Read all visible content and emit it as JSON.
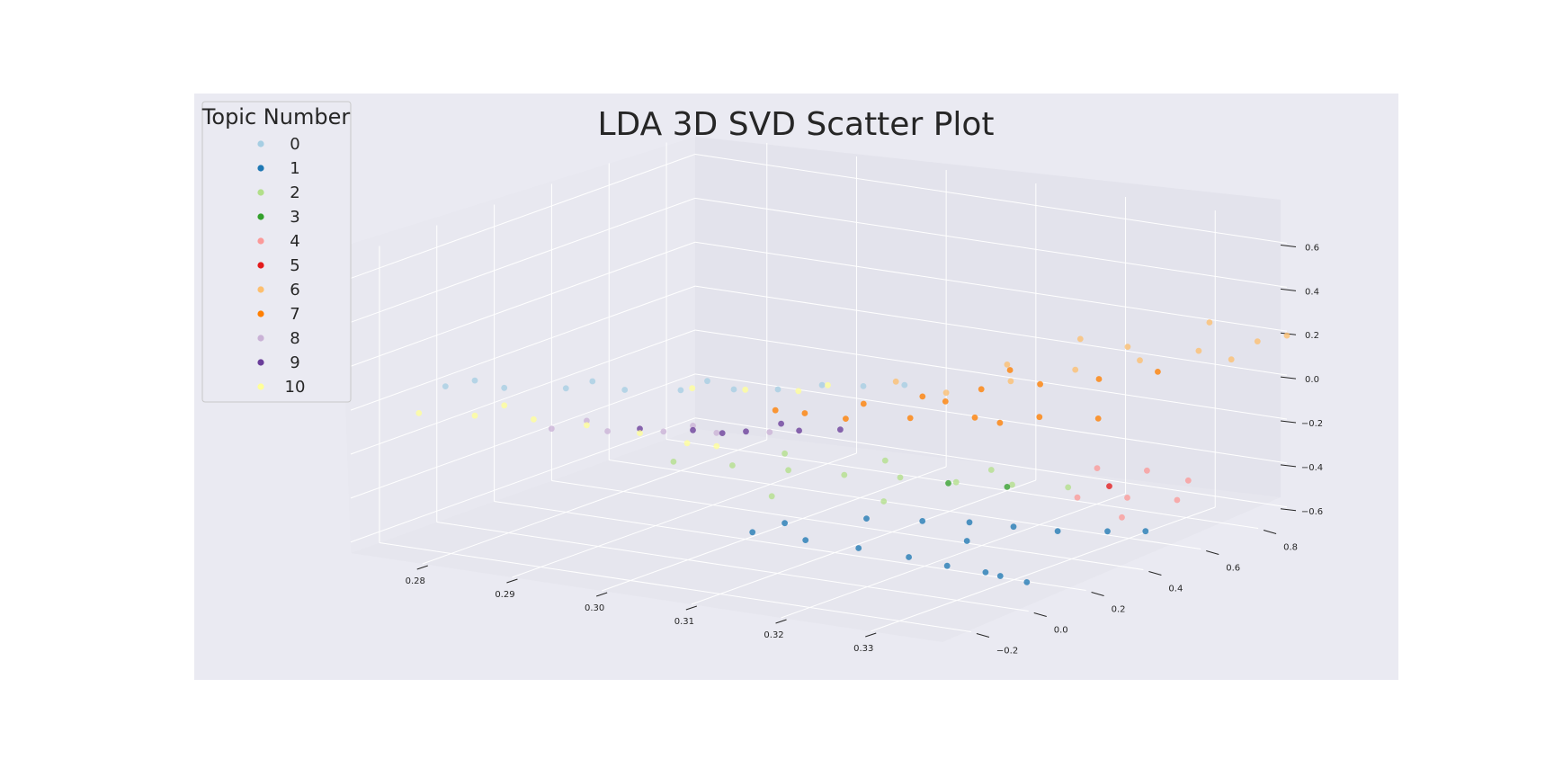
{
  "chart_data": {
    "type": "scatter",
    "projection": "3d",
    "title": "LDA 3D SVD Scatter Plot",
    "xlabel": "",
    "ylabel": "",
    "zlabel": "",
    "x_ticks": [
      0.28,
      0.29,
      0.3,
      0.31,
      0.32,
      0.33
    ],
    "x_tick_labels": [
      "0.28",
      "0.29",
      "0.30",
      "0.31",
      "0.32",
      "0.33"
    ],
    "y_ticks": [
      -0.2,
      0.0,
      0.2,
      0.4,
      0.6,
      0.8
    ],
    "y_tick_labels": [
      "−0.2",
      "0.0",
      "0.2",
      "0.4",
      "0.6",
      "0.8"
    ],
    "z_ticks": [
      -0.6,
      -0.4,
      -0.2,
      0.0,
      0.2,
      0.4,
      0.6
    ],
    "z_tick_labels": [
      "−0.6",
      "−0.4",
      "−0.2",
      "0.0",
      "0.2",
      "0.4",
      "0.6"
    ],
    "xlim": [
      0.272,
      0.338
    ],
    "ylim": [
      -0.3,
      0.9
    ],
    "zlim": [
      -0.65,
      0.7
    ],
    "grid": true,
    "legend": {
      "title": "Topic Number",
      "position": "top-left"
    },
    "series": [
      {
        "name": "0",
        "color": "#a6cee3",
        "points": [
          [
            0.28,
            -0.22,
            0.12
          ],
          [
            0.284,
            -0.14,
            0.1
          ],
          [
            0.288,
            -0.05,
            0.08
          ],
          [
            0.292,
            0.03,
            0.06
          ],
          [
            0.296,
            0.1,
            0.05
          ],
          [
            0.3,
            0.16,
            0.05
          ],
          [
            0.303,
            0.22,
            0.04
          ],
          [
            0.306,
            0.28,
            0.05
          ],
          [
            0.309,
            0.33,
            0.04
          ],
          [
            0.312,
            0.38,
            0.04
          ],
          [
            0.282,
            -0.18,
            0.14
          ],
          [
            0.29,
            -0.02,
            0.11
          ],
          [
            0.298,
            0.13,
            0.09
          ]
        ]
      },
      {
        "name": "1",
        "color": "#1f78b4",
        "points": [
          [
            0.312,
            -0.15,
            -0.38
          ],
          [
            0.316,
            -0.09,
            -0.42
          ],
          [
            0.32,
            -0.03,
            -0.46
          ],
          [
            0.324,
            0.02,
            -0.5
          ],
          [
            0.327,
            0.06,
            -0.54
          ],
          [
            0.33,
            0.1,
            -0.57
          ],
          [
            0.331,
            0.12,
            -0.59
          ],
          [
            0.333,
            0.15,
            -0.62
          ],
          [
            0.318,
            0.06,
            -0.38
          ],
          [
            0.322,
            0.13,
            -0.4
          ],
          [
            0.325,
            0.2,
            -0.42
          ],
          [
            0.328,
            0.26,
            -0.45
          ],
          [
            0.331,
            0.32,
            -0.48
          ],
          [
            0.334,
            0.4,
            -0.5
          ],
          [
            0.336,
            0.47,
            -0.52
          ],
          [
            0.326,
            0.16,
            -0.48
          ],
          [
            0.314,
            -0.1,
            -0.35
          ]
        ]
      },
      {
        "name": "2",
        "color": "#b2df8a",
        "points": [
          [
            0.3,
            -0.05,
            -0.18
          ],
          [
            0.304,
            0.03,
            -0.21
          ],
          [
            0.308,
            0.1,
            -0.24
          ],
          [
            0.312,
            0.17,
            -0.27
          ],
          [
            0.316,
            0.24,
            -0.29
          ],
          [
            0.32,
            0.31,
            -0.32
          ],
          [
            0.324,
            0.38,
            -0.34
          ],
          [
            0.328,
            0.45,
            -0.36
          ],
          [
            0.306,
            0.15,
            -0.2
          ],
          [
            0.314,
            0.25,
            -0.23
          ],
          [
            0.322,
            0.37,
            -0.28
          ],
          [
            0.31,
            -0.02,
            -0.29
          ],
          [
            0.318,
            0.12,
            -0.33
          ]
        ]
      },
      {
        "name": "3",
        "color": "#33a02c",
        "points": [
          [
            0.322,
            0.22,
            -0.27
          ],
          [
            0.326,
            0.3,
            -0.3
          ]
        ]
      },
      {
        "name": "4",
        "color": "#fb9a99",
        "points": [
          [
            0.33,
            0.42,
            -0.38
          ],
          [
            0.333,
            0.5,
            -0.4
          ],
          [
            0.336,
            0.58,
            -0.43
          ],
          [
            0.335,
            0.65,
            -0.38
          ],
          [
            0.332,
            0.6,
            -0.33
          ],
          [
            0.329,
            0.52,
            -0.3
          ],
          [
            0.334,
            0.45,
            -0.46
          ]
        ]
      },
      {
        "name": "5",
        "color": "#e31a1c",
        "points": [
          [
            0.331,
            0.5,
            -0.36
          ]
        ]
      },
      {
        "name": "6",
        "color": "#fdbf6f",
        "points": [
          [
            0.316,
            0.4,
            0.02
          ],
          [
            0.32,
            0.5,
            0.05
          ],
          [
            0.324,
            0.6,
            0.08
          ],
          [
            0.328,
            0.7,
            0.1
          ],
          [
            0.332,
            0.78,
            0.13
          ],
          [
            0.336,
            0.86,
            0.16
          ],
          [
            0.338,
            0.9,
            0.18
          ],
          [
            0.318,
            0.55,
            0.09
          ],
          [
            0.326,
            0.72,
            0.14
          ],
          [
            0.312,
            0.35,
            0.07
          ],
          [
            0.322,
            0.68,
            0.17
          ],
          [
            0.33,
            0.88,
            0.2
          ],
          [
            0.335,
            0.8,
            0.1
          ]
        ]
      },
      {
        "name": "7",
        "color": "#ff7f00",
        "points": [
          [
            0.306,
            0.22,
            -0.05
          ],
          [
            0.31,
            0.3,
            -0.02
          ],
          [
            0.314,
            0.38,
            0.0
          ],
          [
            0.318,
            0.46,
            0.02
          ],
          [
            0.322,
            0.54,
            0.03
          ],
          [
            0.326,
            0.62,
            0.04
          ],
          [
            0.33,
            0.7,
            0.06
          ],
          [
            0.308,
            0.3,
            -0.1
          ],
          [
            0.312,
            0.4,
            -0.12
          ],
          [
            0.316,
            0.5,
            -0.14
          ],
          [
            0.32,
            0.6,
            -0.16
          ],
          [
            0.324,
            0.68,
            -0.18
          ],
          [
            0.304,
            0.18,
            -0.03
          ],
          [
            0.314,
            0.46,
            -0.06
          ],
          [
            0.322,
            0.4,
            -0.08
          ],
          [
            0.318,
            0.56,
            0.06
          ]
        ]
      },
      {
        "name": "8",
        "color": "#cab2d6",
        "points": [
          [
            0.288,
            -0.1,
            -0.08
          ],
          [
            0.292,
            -0.03,
            -0.1
          ],
          [
            0.296,
            0.04,
            -0.11
          ],
          [
            0.3,
            0.1,
            -0.12
          ],
          [
            0.304,
            0.16,
            -0.12
          ],
          [
            0.29,
            -0.04,
            -0.06
          ],
          [
            0.298,
            0.08,
            -0.09
          ]
        ]
      },
      {
        "name": "9",
        "color": "#6a3d9a",
        "points": [
          [
            0.294,
            0.02,
            -0.1
          ],
          [
            0.298,
            0.08,
            -0.11
          ],
          [
            0.302,
            0.14,
            -0.12
          ],
          [
            0.306,
            0.2,
            -0.12
          ],
          [
            0.309,
            0.25,
            -0.12
          ],
          [
            0.304,
            0.2,
            -0.1
          ],
          [
            0.3,
            0.12,
            -0.13
          ]
        ]
      },
      {
        "name": "10",
        "color": "#ffff99",
        "points": [
          [
            0.278,
            -0.25,
            0.0
          ],
          [
            0.282,
            -0.18,
            -0.02
          ],
          [
            0.286,
            -0.1,
            -0.05
          ],
          [
            0.29,
            -0.04,
            -0.08
          ],
          [
            0.294,
            0.02,
            -0.12
          ],
          [
            0.298,
            0.06,
            -0.16
          ],
          [
            0.3,
            0.1,
            -0.18
          ],
          [
            0.296,
            0.14,
            0.04
          ],
          [
            0.3,
            0.2,
            0.03
          ],
          [
            0.304,
            0.26,
            0.02
          ],
          [
            0.306,
            0.3,
            0.04
          ],
          [
            0.284,
            -0.14,
            0.02
          ]
        ]
      }
    ]
  },
  "colors": {
    "figure_background": "#ffffff",
    "axes_background": "#eaeaf2",
    "pane": "#e3e3ec",
    "grid": "#ffffff",
    "text": "#262626",
    "legend_border": "#c8c8c8"
  }
}
